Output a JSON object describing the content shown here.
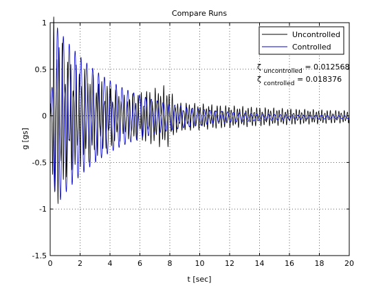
{
  "chart_data": {
    "type": "line",
    "title": "Compare Runs",
    "xlabel": "t [sec]",
    "ylabel": "g [gs]",
    "xlim": [
      0,
      20
    ],
    "ylim": [
      -1.5,
      1
    ],
    "xticks": [
      0,
      2,
      4,
      6,
      8,
      10,
      12,
      14,
      16,
      18,
      20
    ],
    "yticks": [
      -1.5,
      -1,
      -0.5,
      0,
      0.5,
      1
    ],
    "xtick_labels": [
      "0",
      "2",
      "4",
      "6",
      "8",
      "10",
      "12",
      "14",
      "16",
      "18",
      "20"
    ],
    "ytick_labels": [
      "-1.5",
      "-1",
      "-0.5",
      "0",
      "0.5",
      "1"
    ],
    "grid": true,
    "grid_style": "dotted",
    "legend_position": "top-right",
    "series": [
      {
        "name": "Uncontrolled",
        "color": "#000000"
      },
      {
        "name": "Controlled",
        "color": "#0000cc"
      }
    ],
    "annotations": [
      {
        "symbol": "ζ",
        "subscript": "uncontrolled",
        "text": " = 0.012568"
      },
      {
        "symbol": "ζ",
        "subscript": "controlled",
        "text": " = 0.018376"
      }
    ]
  }
}
